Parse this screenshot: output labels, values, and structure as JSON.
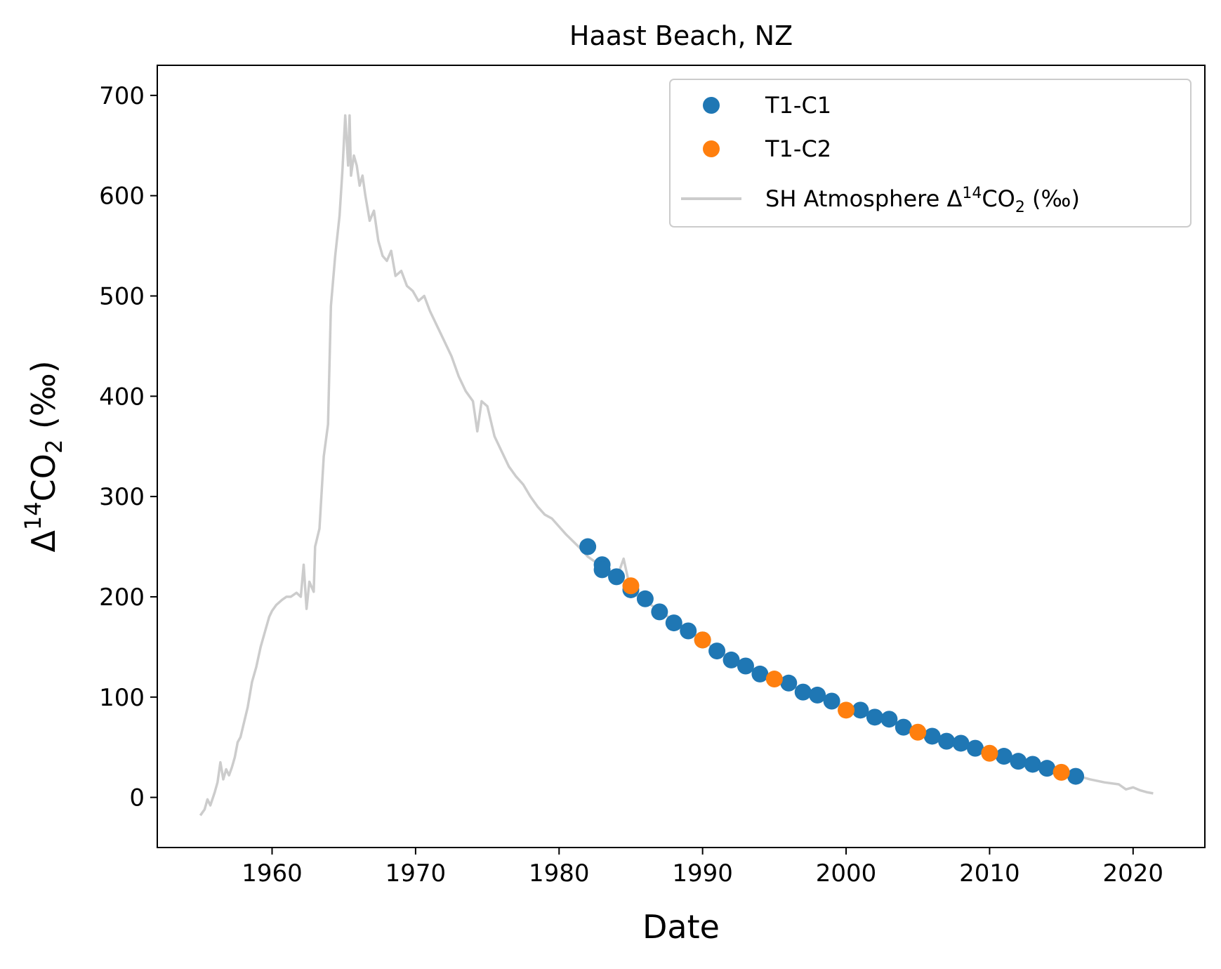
{
  "chart_data": {
    "type": "scatter",
    "title": "Haast Beach, NZ",
    "xlabel": "Date",
    "ylabel_parts": [
      "Δ",
      "14",
      "CO",
      "2",
      " (‰)"
    ],
    "xlim": [
      1952,
      2025
    ],
    "ylim": [
      -50,
      730
    ],
    "xticks": [
      1960,
      1970,
      1980,
      1990,
      2000,
      2010,
      2020
    ],
    "yticks": [
      0,
      100,
      200,
      300,
      400,
      500,
      600,
      700
    ],
    "grid": false,
    "legend_position": "top-right",
    "colors": {
      "T1-C1": "#1f77b4",
      "T1-C2": "#ff7f0e",
      "atmosphere": "#cccccc"
    },
    "series": [
      {
        "name": "T1-C1",
        "kind": "scatter",
        "x": [
          1982,
          1983,
          1983,
          1984,
          1985,
          1986,
          1987,
          1988,
          1989,
          1990,
          1991,
          1992,
          1993,
          1994,
          1996,
          1997,
          1998,
          1999,
          2001,
          2002,
          2003,
          2004,
          2006,
          2007,
          2008,
          2009,
          2011,
          2012,
          2013,
          2014,
          2016
        ],
        "y": [
          250,
          232,
          227,
          220,
          207,
          198,
          185,
          174,
          166,
          157,
          146,
          137,
          131,
          123,
          114,
          105,
          102,
          96,
          87,
          80,
          78,
          70,
          61,
          56,
          54,
          49,
          41,
          36,
          33,
          29,
          21
        ]
      },
      {
        "name": "T1-C2",
        "kind": "scatter",
        "x": [
          1985,
          1990,
          1995,
          2000,
          2005,
          2010,
          2015
        ],
        "y": [
          211,
          157,
          118,
          87,
          65,
          44,
          25
        ]
      },
      {
        "name_parts": [
          "SH Atmosphere Δ",
          "14",
          "CO",
          "2",
          " (‰)"
        ],
        "kind": "line",
        "x": [
          1955.0,
          1955.3,
          1955.5,
          1955.7,
          1956.0,
          1956.2,
          1956.4,
          1956.6,
          1956.8,
          1957.0,
          1957.2,
          1957.4,
          1957.6,
          1957.8,
          1958.0,
          1958.3,
          1958.6,
          1958.9,
          1959.2,
          1959.5,
          1959.8,
          1960.0,
          1960.3,
          1960.7,
          1961.0,
          1961.3,
          1961.7,
          1962.0,
          1962.2,
          1962.4,
          1962.6,
          1962.9,
          1963.0,
          1963.3,
          1963.6,
          1963.9,
          1964.1,
          1964.4,
          1964.7,
          1964.9,
          1965.1,
          1965.3,
          1965.4,
          1965.5,
          1965.7,
          1965.9,
          1966.1,
          1966.3,
          1966.5,
          1966.8,
          1967.1,
          1967.4,
          1967.7,
          1968.0,
          1968.3,
          1968.6,
          1969.0,
          1969.4,
          1969.8,
          1970.2,
          1970.6,
          1971.0,
          1971.5,
          1972.0,
          1972.5,
          1973.0,
          1973.5,
          1974.0,
          1974.3,
          1974.6,
          1975.0,
          1975.5,
          1976.0,
          1976.5,
          1977.0,
          1977.5,
          1978.0,
          1978.5,
          1979.0,
          1979.5,
          1980.0,
          1980.5,
          1981.0,
          1981.5,
          1982.0,
          1983.0,
          1984.0,
          1984.5,
          1985.0,
          1986.0,
          1987.0,
          1988.0,
          1989.0,
          1990.0,
          1991.0,
          1992.0,
          1993.0,
          1994.0,
          1995.0,
          1996.0,
          1997.0,
          1998.0,
          1999.0,
          2000.0,
          2001.0,
          2002.0,
          2003.0,
          2004.0,
          2005.0,
          2006.0,
          2007.0,
          2008.0,
          2009.0,
          2010.0,
          2011.0,
          2012.0,
          2013.0,
          2014.0,
          2015.0,
          2016.0,
          2017.0,
          2018.0,
          2019.0,
          2019.5,
          2020.0,
          2020.5,
          2021.0,
          2021.4
        ],
        "y": [
          -18,
          -12,
          -2,
          -8,
          5,
          15,
          35,
          18,
          28,
          22,
          30,
          40,
          55,
          60,
          72,
          90,
          115,
          130,
          150,
          165,
          180,
          186,
          192,
          197,
          200,
          200,
          204,
          200,
          232,
          188,
          215,
          205,
          250,
          268,
          340,
          372,
          490,
          540,
          580,
          625,
          680,
          630,
          680,
          620,
          640,
          630,
          610,
          620,
          600,
          575,
          585,
          555,
          540,
          535,
          545,
          520,
          525,
          510,
          505,
          495,
          500,
          485,
          470,
          455,
          440,
          420,
          405,
          395,
          365,
          395,
          390,
          360,
          345,
          330,
          320,
          312,
          300,
          290,
          282,
          278,
          270,
          262,
          255,
          248,
          240,
          230,
          218,
          238,
          205,
          196,
          186,
          176,
          167,
          156,
          147,
          139,
          131,
          124,
          117,
          112,
          107,
          101,
          96,
          90,
          85,
          80,
          76,
          71,
          66,
          61,
          57,
          54,
          50,
          45,
          41,
          37,
          34,
          30,
          26,
          22,
          18,
          15,
          13,
          8,
          10,
          7,
          5,
          4
        ]
      }
    ]
  }
}
